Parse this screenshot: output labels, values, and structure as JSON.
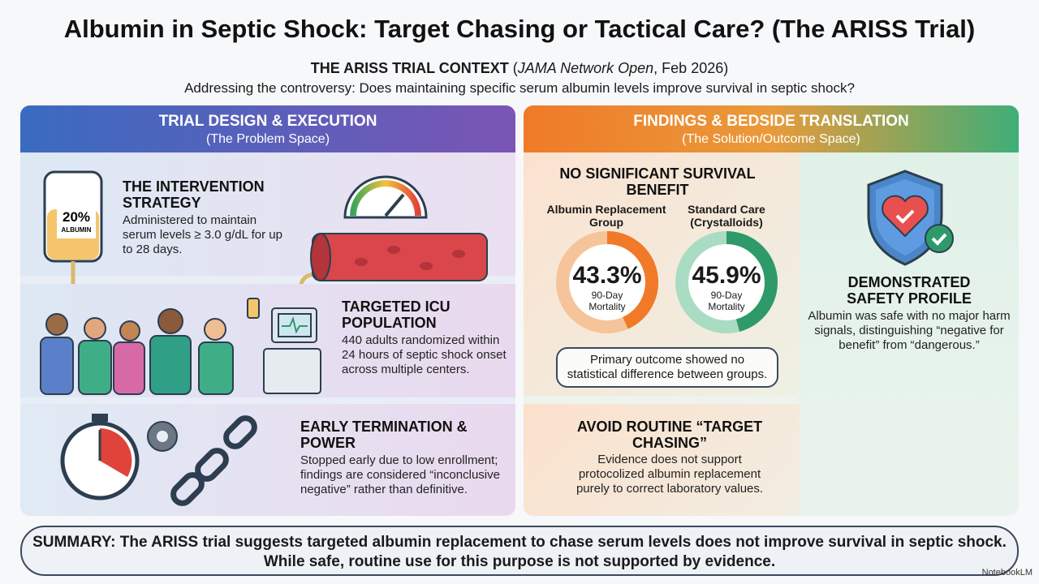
{
  "title": "Albumin in Septic Shock: Target Chasing or Tactical Care? (The ARISS Trial)",
  "context": {
    "heading": "THE ARISS TRIAL CONTEXT",
    "source_open": "(",
    "journal": "JAMA Network Open",
    "date": ", Feb 2026)",
    "question": "Addressing the controversy: Does maintaining specific serum albumin levels improve survival in septic shock?"
  },
  "left": {
    "header": "TRIAL DESIGN & EXECUTION",
    "subheader": "(The Problem Space)",
    "intervention": {
      "title": "THE INTERVENTION STRATEGY",
      "text": "Administered to maintain serum levels ≥ 3.0 g/dL for up to 28 days.",
      "bag_pct": "20%",
      "bag_label": "ALBUMIN"
    },
    "population": {
      "title": "TARGETED ICU POPULATION",
      "text": "440 adults randomized within 24 hours of septic shock onset across multiple centers."
    },
    "termination": {
      "title": "EARLY TERMINATION & POWER",
      "text": "Stopped early due to low enrollment; findings are considered “inconclusive negative” rather than definitive."
    }
  },
  "right": {
    "header": "FINDINGS & BEDSIDE TRANSLATION",
    "subheader": "(The Solution/Outcome Space)",
    "findings": {
      "title": "NO SIGNIFICANT SURVIVAL BENEFIT",
      "groups": [
        {
          "label": "Albumin Replacement Group",
          "value": "43.3%",
          "fraction": 0.433,
          "sub": "90-Day Mortality",
          "color": "#f07a28",
          "light": "#f6c49a"
        },
        {
          "label": "Standard Care (Crystalloids)",
          "value": "45.9%",
          "fraction": 0.459,
          "sub": "90-Day Mortality",
          "color": "#2e9a6a",
          "light": "#a9dcc2"
        }
      ],
      "note": "Primary outcome showed no statistical difference between groups."
    },
    "safety": {
      "title": "DEMONSTRATED SAFETY PROFILE",
      "text": "Albumin was safe with no major harm signals, distinguishing “negative for benefit” from “dangerous.”"
    },
    "avoid": {
      "title": "AVOID ROUTINE “TARGET CHASING”",
      "text": "Evidence does not support protocolized albumin replacement purely to correct laboratory values."
    }
  },
  "summary": "SUMMARY: The ARISS trial suggests targeted albumin replacement to chase serum levels does not improve survival in septic shock. While safe, routine use for this purpose is not supported by evidence.",
  "watermark": "NotebookLM"
}
